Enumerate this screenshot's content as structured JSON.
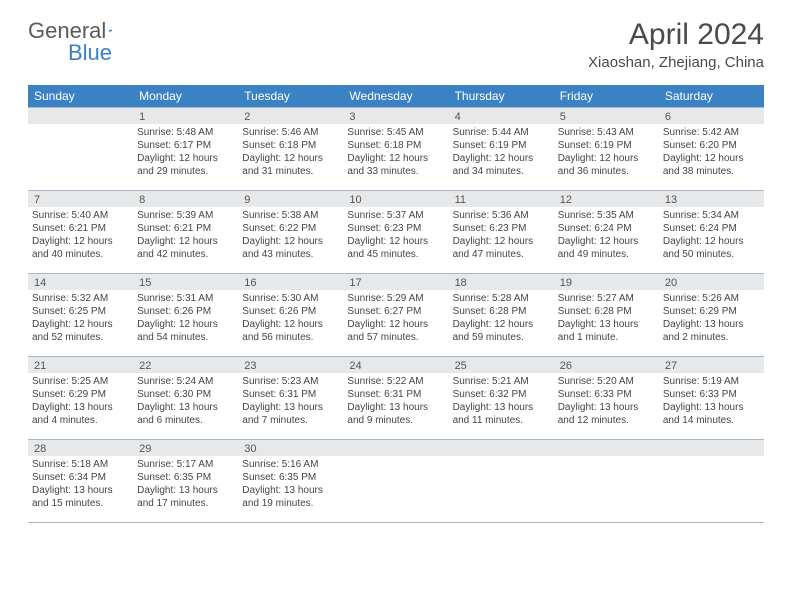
{
  "logo": {
    "part1": "General",
    "part2": "Blue"
  },
  "title": "April 2024",
  "location": "Xiaoshan, Zhejiang, China",
  "colors": {
    "header_bg": "#3b82c4",
    "header_text": "#ffffff",
    "daynum_bg": "#e6e8ea",
    "border": "#a8b8c8",
    "text": "#454545",
    "title_text": "#4a4a4a"
  },
  "day_names": [
    "Sunday",
    "Monday",
    "Tuesday",
    "Wednesday",
    "Thursday",
    "Friday",
    "Saturday"
  ],
  "weeks": [
    [
      {
        "num": "",
        "lines": []
      },
      {
        "num": "1",
        "lines": [
          "Sunrise: 5:48 AM",
          "Sunset: 6:17 PM",
          "Daylight: 12 hours",
          "and 29 minutes."
        ]
      },
      {
        "num": "2",
        "lines": [
          "Sunrise: 5:46 AM",
          "Sunset: 6:18 PM",
          "Daylight: 12 hours",
          "and 31 minutes."
        ]
      },
      {
        "num": "3",
        "lines": [
          "Sunrise: 5:45 AM",
          "Sunset: 6:18 PM",
          "Daylight: 12 hours",
          "and 33 minutes."
        ]
      },
      {
        "num": "4",
        "lines": [
          "Sunrise: 5:44 AM",
          "Sunset: 6:19 PM",
          "Daylight: 12 hours",
          "and 34 minutes."
        ]
      },
      {
        "num": "5",
        "lines": [
          "Sunrise: 5:43 AM",
          "Sunset: 6:19 PM",
          "Daylight: 12 hours",
          "and 36 minutes."
        ]
      },
      {
        "num": "6",
        "lines": [
          "Sunrise: 5:42 AM",
          "Sunset: 6:20 PM",
          "Daylight: 12 hours",
          "and 38 minutes."
        ]
      }
    ],
    [
      {
        "num": "7",
        "lines": [
          "Sunrise: 5:40 AM",
          "Sunset: 6:21 PM",
          "Daylight: 12 hours",
          "and 40 minutes."
        ]
      },
      {
        "num": "8",
        "lines": [
          "Sunrise: 5:39 AM",
          "Sunset: 6:21 PM",
          "Daylight: 12 hours",
          "and 42 minutes."
        ]
      },
      {
        "num": "9",
        "lines": [
          "Sunrise: 5:38 AM",
          "Sunset: 6:22 PM",
          "Daylight: 12 hours",
          "and 43 minutes."
        ]
      },
      {
        "num": "10",
        "lines": [
          "Sunrise: 5:37 AM",
          "Sunset: 6:23 PM",
          "Daylight: 12 hours",
          "and 45 minutes."
        ]
      },
      {
        "num": "11",
        "lines": [
          "Sunrise: 5:36 AM",
          "Sunset: 6:23 PM",
          "Daylight: 12 hours",
          "and 47 minutes."
        ]
      },
      {
        "num": "12",
        "lines": [
          "Sunrise: 5:35 AM",
          "Sunset: 6:24 PM",
          "Daylight: 12 hours",
          "and 49 minutes."
        ]
      },
      {
        "num": "13",
        "lines": [
          "Sunrise: 5:34 AM",
          "Sunset: 6:24 PM",
          "Daylight: 12 hours",
          "and 50 minutes."
        ]
      }
    ],
    [
      {
        "num": "14",
        "lines": [
          "Sunrise: 5:32 AM",
          "Sunset: 6:25 PM",
          "Daylight: 12 hours",
          "and 52 minutes."
        ]
      },
      {
        "num": "15",
        "lines": [
          "Sunrise: 5:31 AM",
          "Sunset: 6:26 PM",
          "Daylight: 12 hours",
          "and 54 minutes."
        ]
      },
      {
        "num": "16",
        "lines": [
          "Sunrise: 5:30 AM",
          "Sunset: 6:26 PM",
          "Daylight: 12 hours",
          "and 56 minutes."
        ]
      },
      {
        "num": "17",
        "lines": [
          "Sunrise: 5:29 AM",
          "Sunset: 6:27 PM",
          "Daylight: 12 hours",
          "and 57 minutes."
        ]
      },
      {
        "num": "18",
        "lines": [
          "Sunrise: 5:28 AM",
          "Sunset: 6:28 PM",
          "Daylight: 12 hours",
          "and 59 minutes."
        ]
      },
      {
        "num": "19",
        "lines": [
          "Sunrise: 5:27 AM",
          "Sunset: 6:28 PM",
          "Daylight: 13 hours",
          "and 1 minute."
        ]
      },
      {
        "num": "20",
        "lines": [
          "Sunrise: 5:26 AM",
          "Sunset: 6:29 PM",
          "Daylight: 13 hours",
          "and 2 minutes."
        ]
      }
    ],
    [
      {
        "num": "21",
        "lines": [
          "Sunrise: 5:25 AM",
          "Sunset: 6:29 PM",
          "Daylight: 13 hours",
          "and 4 minutes."
        ]
      },
      {
        "num": "22",
        "lines": [
          "Sunrise: 5:24 AM",
          "Sunset: 6:30 PM",
          "Daylight: 13 hours",
          "and 6 minutes."
        ]
      },
      {
        "num": "23",
        "lines": [
          "Sunrise: 5:23 AM",
          "Sunset: 6:31 PM",
          "Daylight: 13 hours",
          "and 7 minutes."
        ]
      },
      {
        "num": "24",
        "lines": [
          "Sunrise: 5:22 AM",
          "Sunset: 6:31 PM",
          "Daylight: 13 hours",
          "and 9 minutes."
        ]
      },
      {
        "num": "25",
        "lines": [
          "Sunrise: 5:21 AM",
          "Sunset: 6:32 PM",
          "Daylight: 13 hours",
          "and 11 minutes."
        ]
      },
      {
        "num": "26",
        "lines": [
          "Sunrise: 5:20 AM",
          "Sunset: 6:33 PM",
          "Daylight: 13 hours",
          "and 12 minutes."
        ]
      },
      {
        "num": "27",
        "lines": [
          "Sunrise: 5:19 AM",
          "Sunset: 6:33 PM",
          "Daylight: 13 hours",
          "and 14 minutes."
        ]
      }
    ],
    [
      {
        "num": "28",
        "lines": [
          "Sunrise: 5:18 AM",
          "Sunset: 6:34 PM",
          "Daylight: 13 hours",
          "and 15 minutes."
        ]
      },
      {
        "num": "29",
        "lines": [
          "Sunrise: 5:17 AM",
          "Sunset: 6:35 PM",
          "Daylight: 13 hours",
          "and 17 minutes."
        ]
      },
      {
        "num": "30",
        "lines": [
          "Sunrise: 5:16 AM",
          "Sunset: 6:35 PM",
          "Daylight: 13 hours",
          "and 19 minutes."
        ]
      },
      {
        "num": "",
        "lines": []
      },
      {
        "num": "",
        "lines": []
      },
      {
        "num": "",
        "lines": []
      },
      {
        "num": "",
        "lines": []
      }
    ]
  ]
}
